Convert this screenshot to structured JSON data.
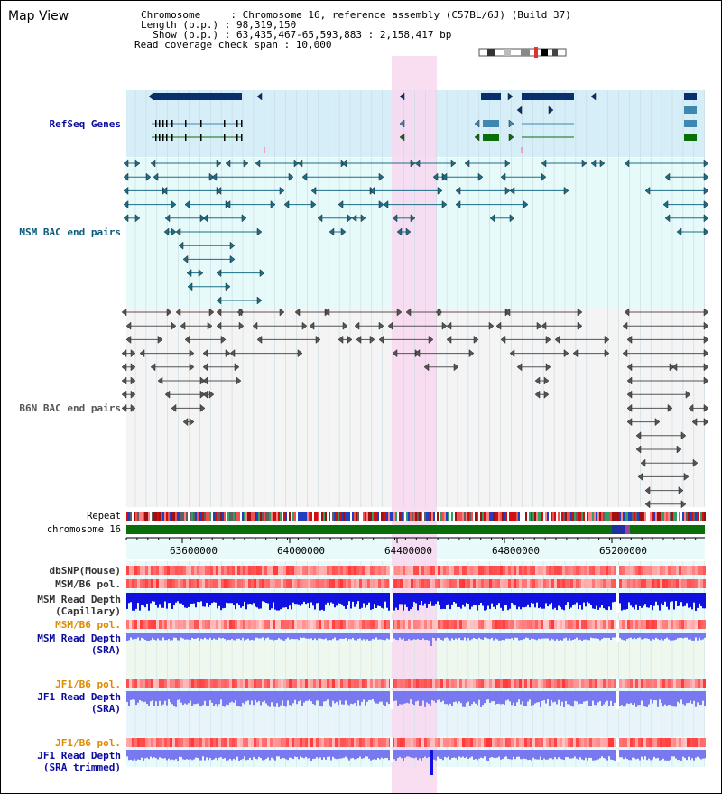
{
  "header": {
    "title": "Map View",
    "info_lines": [
      "Chromosome     : Chromosome 16, reference assembly (C57BL/6J) (Build 37)",
      "Length (b.p.) : 98,319,150",
      "  Show (b.p.) : 63,435,467-65,593,883 : 2,158,417 bp",
      "Read coverage check span : 10,000"
    ]
  },
  "colors": {
    "refseq_bg": "#d6eef8",
    "bac_bg": "#e6fafa",
    "highlight": "#f8d8f0",
    "gene_dark": "#0a2f6e",
    "gene_mid": "#3f86b0",
    "gene_green": "#0a6e0a",
    "msm_pair": "#1a6e8a",
    "b6n_pair": "#555555",
    "chrom_green": "#0a6e0a",
    "depth_blue": "#1010e0",
    "depth_light": "#7878f0",
    "label_blue": "#0a0aa0",
    "label_teal": "#0a5a7a",
    "label_orange": "#e08a00"
  },
  "tracks": {
    "refseq_label": "RefSeq Genes",
    "msm_label": "MSM BAC end pairs",
    "b6n_label": "B6N BAC end pairs",
    "repeat_label": "Repeat",
    "chromosome_label": "chromosome 16",
    "dbsnp_label": "dbSNP(Mouse)",
    "msm_b6_pol_label": "MSM/B6 pol.",
    "msm_depth_cap_label": "MSM Read Depth",
    "msm_depth_cap_sub": "(Capillary)",
    "msm_b6_pol2_label": "MSM/B6 pol.",
    "msm_depth_sra_label": "MSM Read Depth",
    "msm_depth_sra_sub": "(SRA)",
    "jf1_pol_label": "JF1/B6 pol.",
    "jf1_depth_label": "JF1 Read Depth",
    "jf1_depth_sub": "(SRA)",
    "jf1_pol2_label": "JF1/B6 pol.",
    "jf1_depth_trim_label": "JF1 Read Depth",
    "jf1_depth_trim_sub": "(SRA trimmed)"
  },
  "axis": {
    "ticks": [
      "63600000",
      "64000000",
      "64400000",
      "64800000",
      "65200000"
    ]
  }
}
